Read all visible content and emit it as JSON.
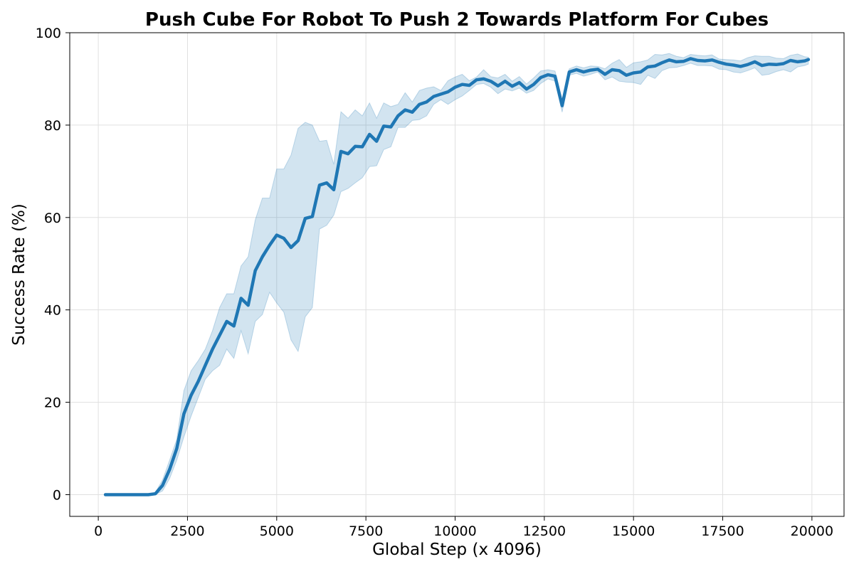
{
  "chart_data": {
    "type": "line",
    "title": "Push Cube For Robot To Push 2 Towards Platform For Cubes",
    "xlabel": "Global Step (x 4096)",
    "ylabel": "Success Rate (%)",
    "xlim": [
      -800,
      20900
    ],
    "ylim": [
      -4.7,
      100
    ],
    "xticks": [
      0,
      2500,
      5000,
      7500,
      10000,
      12500,
      15000,
      17500,
      20000
    ],
    "yticks": [
      0,
      20,
      40,
      60,
      80,
      100
    ],
    "grid": true,
    "colors": {
      "line": "#1f77b4",
      "band": "#1f77b4"
    },
    "series": [
      {
        "x": [
          200,
          400,
          600,
          800,
          1000,
          1200,
          1400,
          1600,
          1800,
          2000,
          2200,
          2400,
          2600,
          2800,
          3000,
          3200,
          3400,
          3600,
          3800,
          4000,
          4200,
          4400,
          4600,
          4800,
          5000,
          5200,
          5400,
          5600,
          5800,
          6000,
          6200,
          6400,
          6600,
          6800,
          7000,
          7200,
          7400,
          7600,
          7800,
          8000,
          8200,
          8400,
          8600,
          8800,
          9000,
          9200,
          9400,
          9600,
          9800,
          10000,
          10200,
          10400,
          10600,
          10800,
          11000,
          11200,
          11400,
          11600,
          11800,
          12000,
          12200,
          12400,
          12600,
          12800,
          13000,
          13200,
          13400,
          13600,
          13800,
          14000,
          14200,
          14400,
          14600,
          14800,
          15000,
          15200,
          15400,
          15600,
          15800,
          16000,
          16200,
          16400,
          16600,
          16800,
          17000,
          17200,
          17400,
          17600,
          17800,
          18000,
          18200,
          18400,
          18600,
          18800,
          19000,
          19200,
          19400,
          19600,
          19800,
          19900
        ],
        "y": [
          0,
          0,
          0,
          0,
          0,
          0,
          0,
          0.2,
          2,
          5.5,
          10,
          17.5,
          21.5,
          24.5,
          28,
          31.5,
          34.5,
          37.5,
          36.5,
          42.5,
          41,
          48.5,
          51.5,
          54,
          56.2,
          55.5,
          53.5,
          55,
          59.8,
          60.2,
          67,
          67.5,
          66,
          74.3,
          73.8,
          75.4,
          75.3,
          78,
          76.5,
          79.8,
          79.6,
          82,
          83.3,
          82.8,
          84.5,
          85,
          86.2,
          86.7,
          87.2,
          88.2,
          88.8,
          88.6,
          89.8,
          90,
          89.5,
          88.5,
          89.5,
          88.4,
          89.2,
          87.8,
          88.8,
          90.3,
          90.9,
          90.6,
          84.2,
          91.5,
          92,
          91.5,
          91.9,
          92.1,
          91,
          92,
          91.8,
          90.8,
          91.3,
          91.5,
          92.6,
          92.8,
          93.5,
          94.1,
          93.7,
          93.8,
          94.4,
          94,
          93.9,
          94.1,
          93.6,
          93.2,
          93,
          92.7,
          93.1,
          93.7,
          92.9,
          93.2,
          93.1,
          93.3,
          94,
          93.7,
          93.9,
          94.2
        ],
        "lower": [
          0,
          0,
          0,
          0,
          0,
          0,
          0,
          0,
          0.8,
          3.5,
          7.5,
          12.5,
          17,
          21,
          25,
          26.8,
          28,
          31.5,
          29.5,
          35.5,
          30.5,
          37.5,
          39,
          43.8,
          41.5,
          39.5,
          33.5,
          31,
          38.5,
          40.5,
          57.5,
          58.3,
          60.5,
          65.6,
          66.3,
          67.5,
          68.6,
          71,
          71.2,
          74.7,
          75.3,
          79.5,
          79.5,
          81,
          81.2,
          82,
          84.5,
          85.5,
          84.5,
          85.5,
          86.3,
          87.5,
          88.8,
          89,
          88.2,
          86.8,
          87.8,
          87.4,
          88,
          86.9,
          87.5,
          89,
          90,
          89.5,
          82.8,
          90.8,
          91.2,
          90.6,
          91,
          91.5,
          89.8,
          90.4,
          89.5,
          89.3,
          89.2,
          88.8,
          90.8,
          90.1,
          91.8,
          92.4,
          92.5,
          92.9,
          93.4,
          92.9,
          92.9,
          92.8,
          92.1,
          92,
          91.5,
          91.3,
          91.8,
          92.4,
          90.8,
          91,
          91.6,
          92,
          91.5,
          92.6,
          92.9,
          93.2
        ],
        "upper": [
          0,
          0,
          0,
          0,
          0,
          0,
          0,
          0.5,
          3.2,
          7.5,
          12,
          22.5,
          26.8,
          29,
          31.5,
          35.5,
          40.5,
          43.5,
          43.5,
          49.5,
          51.5,
          59.5,
          64.2,
          64.2,
          70.5,
          70.5,
          73.5,
          79.3,
          80.6,
          80,
          76.5,
          76.7,
          71.5,
          82.9,
          81.5,
          83.3,
          82,
          84.8,
          81.5,
          84.8,
          84,
          84.5,
          87,
          85,
          87.5,
          88,
          88.3,
          87.5,
          89.6,
          90.4,
          91,
          89.6,
          90.4,
          92,
          90.5,
          90.2,
          91,
          89.5,
          90.5,
          88.9,
          90.2,
          91.7,
          92,
          91.7,
          85.5,
          92.2,
          92.8,
          92.4,
          92.8,
          92.7,
          92.2,
          93.4,
          94.2,
          92.5,
          93.5,
          93.7,
          94.1,
          95.3,
          95.2,
          95.5,
          94.9,
          94.6,
          95.3,
          95.1,
          95,
          95.2,
          94.3,
          94.2,
          94.1,
          93.9,
          94.6,
          95,
          94.9,
          94.9,
          94.5,
          94.4,
          95.1,
          95.4,
          94.8,
          94.7
        ]
      }
    ]
  }
}
